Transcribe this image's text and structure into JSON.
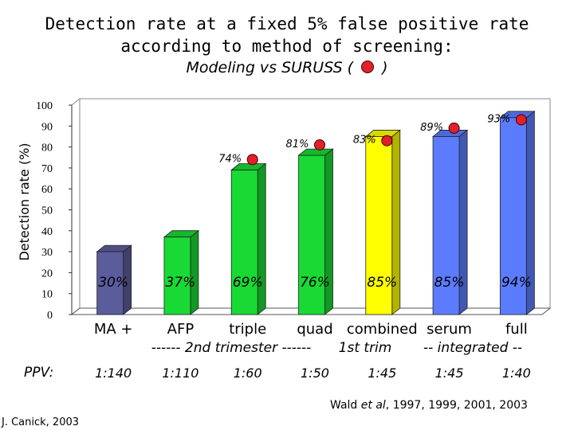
{
  "title_line1": "Detection rate at a fixed 5% false positive rate",
  "title_line2": "according to method of screening:",
  "title_line3_left": "Modeling vs SURUSS (",
  "title_line3_right": ")",
  "ppv_label": "PPV:",
  "citation": {
    "prefix": "Wald ",
    "italic": "et al",
    "suffix": ", 1997, 1999, 2001, 2003"
  },
  "credit": "J. Canick, 2003",
  "group_labels": {
    "second_trimester": "------ 2nd trimester ------",
    "first_trimester": "1st trim",
    "integrated": "-- integrated --"
  },
  "chart_data": {
    "type": "bar",
    "title": "Detection rate at a fixed 5% false positive rate according to method of screening:",
    "subtitle": "Modeling vs SURUSS (   )",
    "ylabel": "Detection rate (%)",
    "ylim": [
      0,
      100
    ],
    "yticks": [
      0,
      10,
      20,
      30,
      40,
      50,
      60,
      70,
      80,
      90,
      100
    ],
    "categories": [
      "MA  +",
      "AFP",
      "triple",
      "quad",
      "combined",
      "serum",
      "full"
    ],
    "series": [
      {
        "values": [
          30,
          37,
          69,
          76,
          85,
          85,
          94
        ],
        "labels": [
          "30%",
          "37%",
          "69%",
          "76%",
          "85%",
          "85%",
          "94%"
        ]
      }
    ],
    "suruss_markers": [
      {
        "category": "triple",
        "value": 74,
        "label": "74%"
      },
      {
        "category": "quad",
        "value": 81,
        "label": "81%"
      },
      {
        "category": "combined",
        "value": 83,
        "label": "83%"
      },
      {
        "category": "serum",
        "value": 89,
        "label": "89%"
      },
      {
        "category": "full",
        "value": 93,
        "label": "93%"
      }
    ],
    "ppv": [
      "1:140",
      "1:110",
      "1:60",
      "1:50",
      "1:45",
      "1:45",
      "1:40"
    ],
    "colors": {
      "MA  +": "#5b5c9c",
      "AFP": "#19d934",
      "triple": "#19d934",
      "quad": "#19d934",
      "combined": "#ffff00",
      "serum": "#5b7cff",
      "full": "#5b7cff",
      "marker": "#e0202a"
    },
    "grid": false
  }
}
